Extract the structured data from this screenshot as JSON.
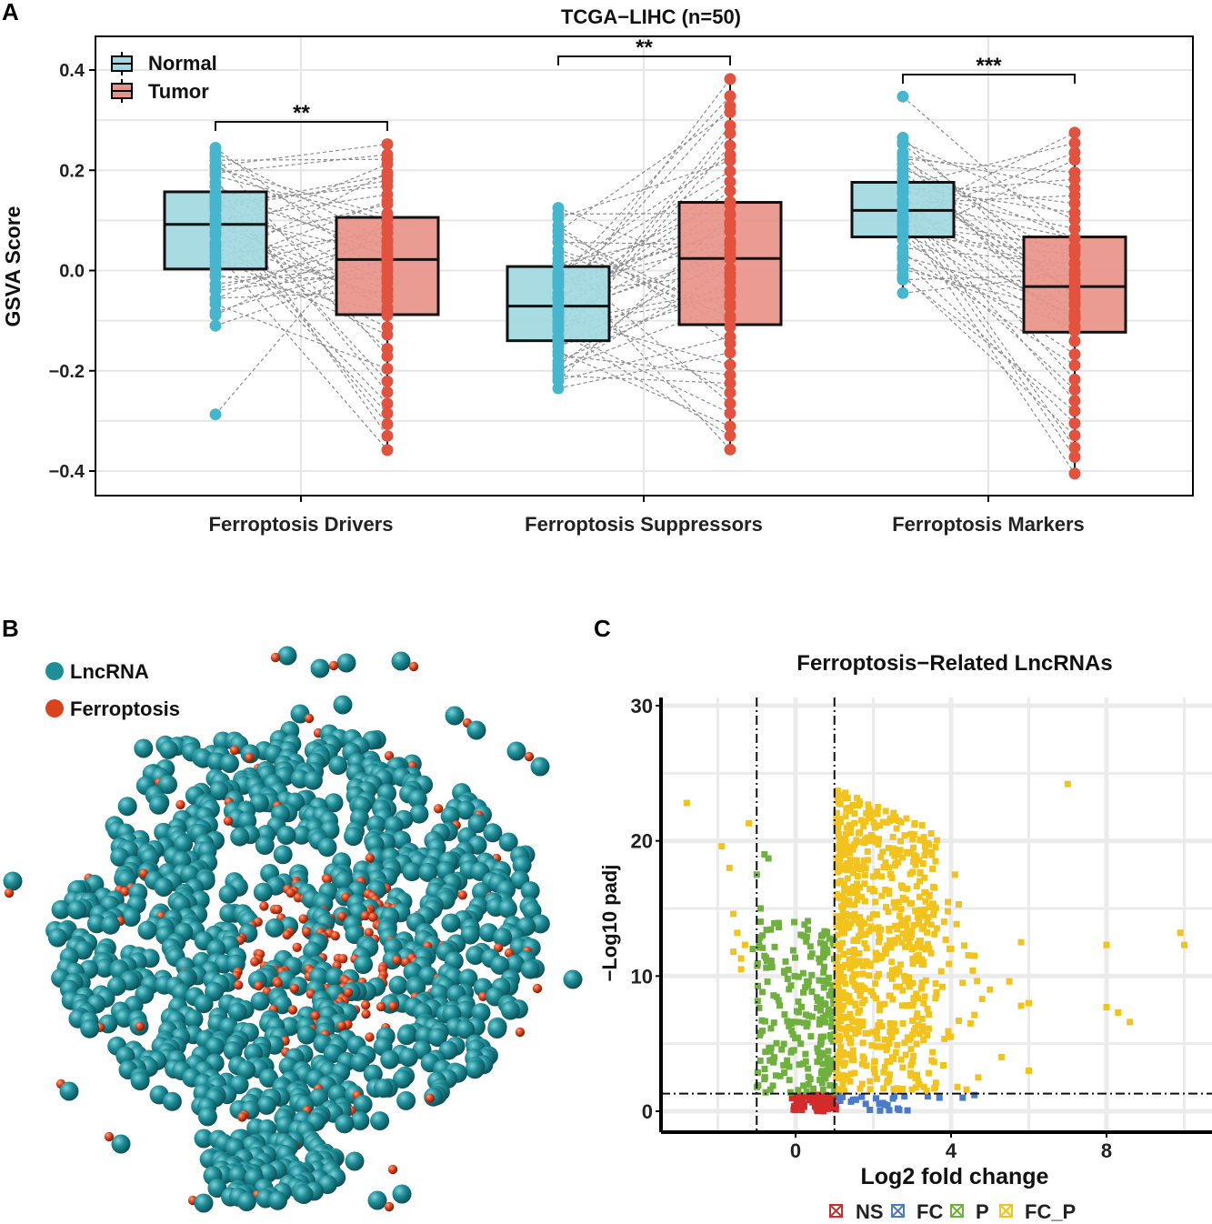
{
  "panels": {
    "a": {
      "letter": "A"
    },
    "b": {
      "letter": "B"
    },
    "c": {
      "letter": "C"
    }
  },
  "colors": {
    "normal_fill": "#a3d8e0",
    "normal_point": "#46b6cf",
    "tumor_fill": "#e8938a",
    "tumor_point": "#e2533f",
    "lncrna": "#1f8e98",
    "ferroptosis": "#d9431e",
    "NS": "#d32b2b",
    "FC": "#4a7bc9",
    "P": "#6fb03f",
    "FC_P": "#f2c31c",
    "grid": "#e6e6e6",
    "paired_line": "#8c8c8c"
  },
  "chart_data": [
    {
      "id": "gsva-boxplot",
      "type": "box",
      "title": "TCGA−LIHC (n=50)",
      "xlabel": "",
      "ylabel": "GSVA Score",
      "ylim": [
        -0.45,
        0.46
      ],
      "yticks": [
        0.4,
        0.2,
        0.0,
        -0.2,
        -0.4
      ],
      "ytick_labels": [
        "0.4",
        "0.2",
        "0.0",
        "−0.2",
        "−0.4"
      ],
      "categories": [
        "Ferroptosis Drivers",
        "Ferroptosis Suppressors",
        "Ferroptosis Markers"
      ],
      "legend": [
        "Normal",
        "Tumor"
      ],
      "legend_position": "top-left",
      "series": [
        {
          "name": "Normal",
          "q1": [
            0.003,
            -0.14,
            0.067
          ],
          "median": [
            0.092,
            -0.071,
            0.12
          ],
          "q3": [
            0.157,
            0.008,
            0.176
          ],
          "min": [
            -0.11,
            -0.235,
            -0.045
          ],
          "max": [
            0.245,
            0.125,
            0.265
          ],
          "outliers": [
            [
              -0.287
            ],
            [],
            [
              0.347
            ]
          ]
        },
        {
          "name": "Tumor",
          "q1": [
            -0.088,
            -0.108,
            -0.123
          ],
          "median": [
            0.022,
            0.024,
            -0.032
          ],
          "q3": [
            0.106,
            0.136,
            0.067
          ],
          "min": [
            -0.358,
            -0.357,
            -0.405
          ],
          "max": [
            0.252,
            0.382,
            0.275
          ],
          "outliers": [
            [],
            [],
            []
          ]
        }
      ],
      "significance": [
        "**",
        "**",
        "***"
      ],
      "n_pairs": 50
    },
    {
      "id": "network-plot",
      "type": "network",
      "legend": [
        "LncRNA",
        "Ferroptosis"
      ],
      "legend_position": "top-left"
    },
    {
      "id": "volcano-plot",
      "type": "scatter",
      "title": "Ferroptosis−Related LncRNAs",
      "xlabel": "Log2 fold change",
      "ylabel": "−Log10 padj",
      "xlim": [
        -3.4,
        10.6
      ],
      "ylim": [
        -1.2,
        31.0
      ],
      "xticks": [
        0,
        4,
        8
      ],
      "yticks": [
        0,
        10,
        20,
        30
      ],
      "thresholds": {
        "log2fc": [
          -1,
          1
        ],
        "neg_log10_padj": 1.3
      },
      "legend": [
        "NS",
        "FC",
        "P",
        "FC_P"
      ],
      "legend_position": "bottom",
      "fc_p_outliers": [
        [
          -2.8,
          22.8
        ],
        [
          -1.2,
          21.3
        ],
        [
          7.0,
          24.2
        ],
        [
          9.9,
          13.2
        ],
        [
          10.0,
          12.3
        ],
        [
          8.0,
          12.3
        ],
        [
          8.0,
          7.7
        ],
        [
          8.3,
          7.3
        ],
        [
          8.6,
          6.6
        ],
        [
          6.0,
          8.0
        ],
        [
          5.8,
          7.8
        ],
        [
          4.8,
          8.3
        ],
        [
          5.5,
          9.6
        ],
        [
          5.0,
          9.0
        ],
        [
          6.0,
          3.0
        ],
        [
          5.3,
          4.0
        ],
        [
          5.8,
          12.5
        ],
        [
          4.0,
          12.0
        ],
        [
          4.3,
          9.5
        ],
        [
          4.1,
          17.5
        ],
        [
          4.2,
          15.3
        ],
        [
          4.6,
          11.5
        ],
        [
          4.5,
          6.5
        ],
        [
          4.4,
          1.6
        ],
        [
          4.7,
          2.5
        ]
      ]
    }
  ]
}
